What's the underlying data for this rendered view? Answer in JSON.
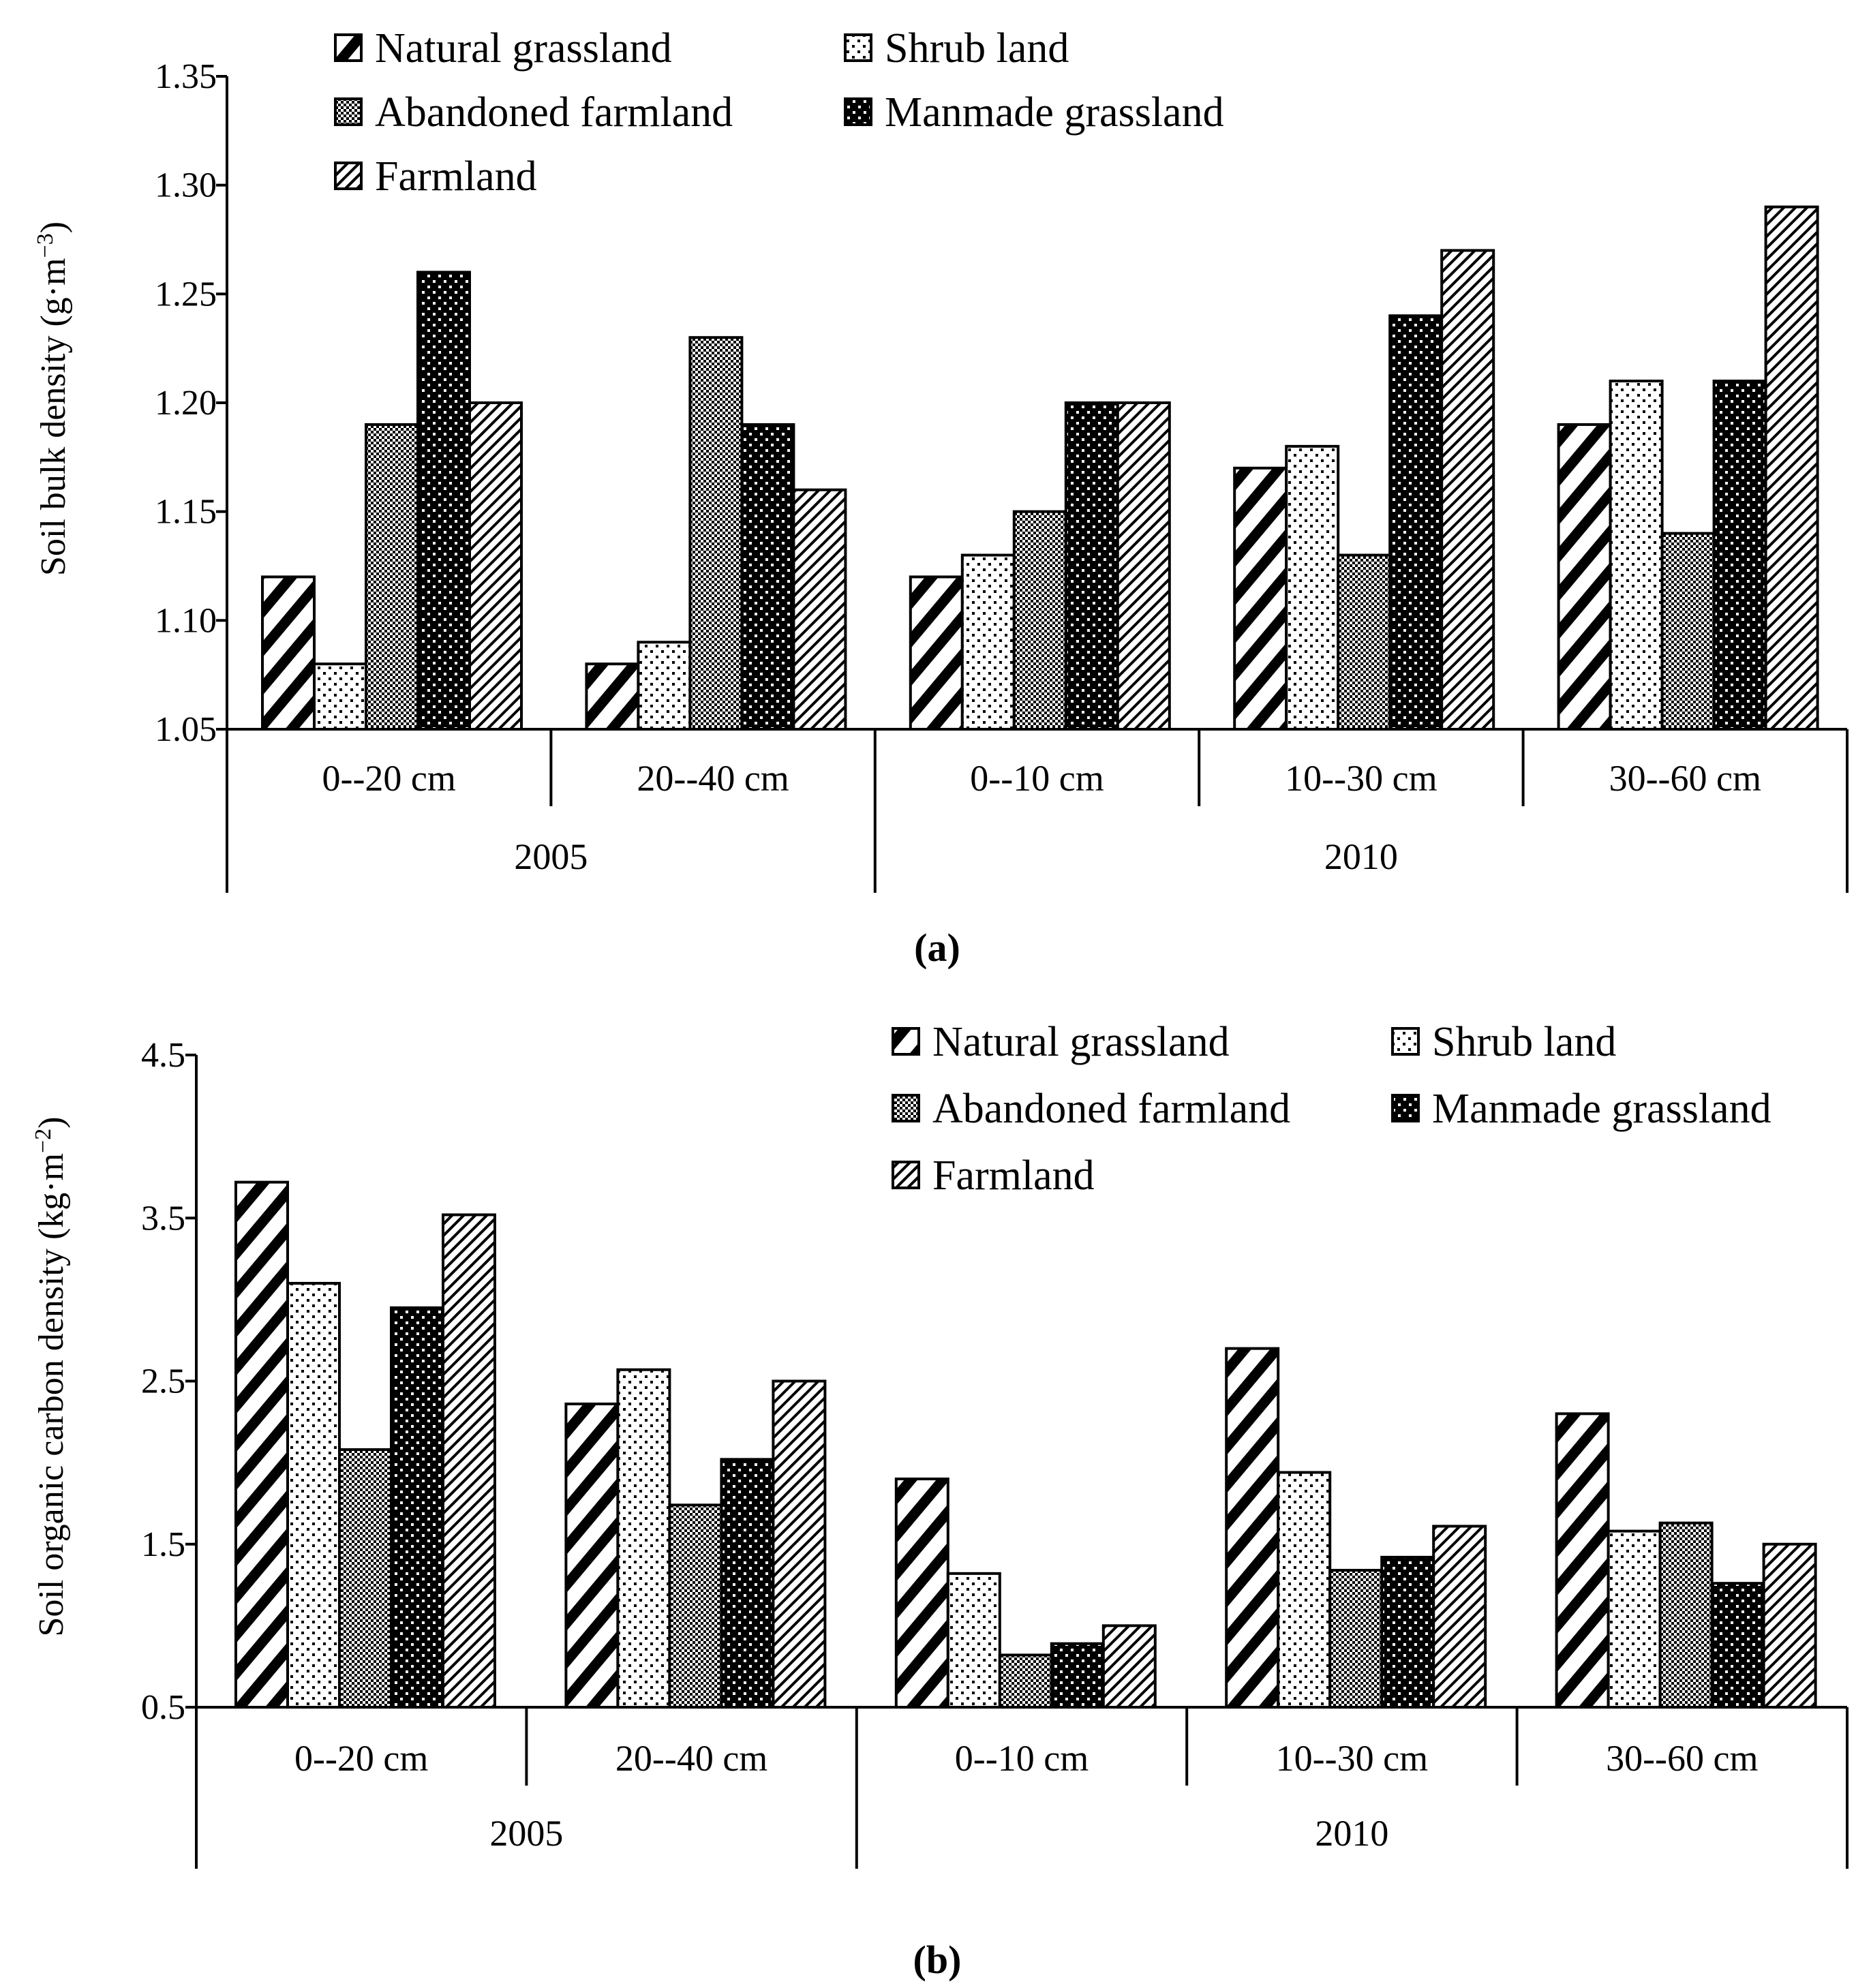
{
  "chart_data": [
    {
      "panel": "a",
      "type": "bar",
      "ylabel": "Soil bulk density",
      "ylabel_unit_base": "g·m",
      "ylabel_unit_exp": "−3",
      "ylim": [
        1.05,
        1.35
      ],
      "yticks": [
        "1.05",
        "1.10",
        "1.15",
        "1.20",
        "1.25",
        "1.30",
        "1.35"
      ],
      "groups": [
        {
          "label": "2005",
          "categories": [
            "0--20 cm",
            "20--40 cm"
          ]
        },
        {
          "label": "2010",
          "categories": [
            "0--10 cm",
            "10--30 cm",
            "30--60 cm"
          ]
        }
      ],
      "categories": [
        "0--20 cm",
        "20--40 cm",
        "0--10 cm",
        "10--30 cm",
        "30--60 cm"
      ],
      "series": [
        {
          "name": "Natural grassland",
          "values": [
            1.12,
            1.08,
            1.12,
            1.17,
            1.19
          ]
        },
        {
          "name": "Shrub  land",
          "values": [
            1.08,
            1.09,
            1.13,
            1.18,
            1.21
          ]
        },
        {
          "name": "Abandoned farmland",
          "values": [
            1.19,
            1.23,
            1.15,
            1.13,
            1.14
          ]
        },
        {
          "name": "Manmade grassland",
          "values": [
            1.26,
            1.19,
            1.2,
            1.24,
            1.21
          ]
        },
        {
          "name": "Farmland",
          "values": [
            1.2,
            1.16,
            1.2,
            1.27,
            1.29
          ]
        }
      ]
    },
    {
      "panel": "b",
      "type": "bar",
      "ylabel": "Soil organic carbon density",
      "ylabel_unit_base": "kg·m",
      "ylabel_unit_exp": "−2",
      "ylim": [
        0.5,
        4.5
      ],
      "yticks": [
        "0.5",
        "1.5",
        "2.5",
        "3.5",
        "4.5"
      ],
      "groups": [
        {
          "label": "2005",
          "categories": [
            "0--20 cm",
            "20--40 cm"
          ]
        },
        {
          "label": "2010",
          "categories": [
            "0--10 cm",
            "10--30 cm",
            "30--60 cm"
          ]
        }
      ],
      "categories": [
        "0--20 cm",
        "20--40 cm",
        "0--10 cm",
        "10--30 cm",
        "30--60 cm"
      ],
      "series": [
        {
          "name": "Natural grassland",
          "values": [
            3.72,
            2.36,
            1.9,
            2.7,
            2.3
          ]
        },
        {
          "name": "Shrub  land",
          "values": [
            3.1,
            2.57,
            1.32,
            1.94,
            1.58
          ]
        },
        {
          "name": "Abandoned farmland",
          "values": [
            2.08,
            1.74,
            0.82,
            1.34,
            1.63
          ]
        },
        {
          "name": "Manmade grassland",
          "values": [
            2.95,
            2.02,
            0.89,
            1.42,
            1.26
          ]
        },
        {
          "name": "Farmland",
          "values": [
            3.52,
            2.5,
            1.0,
            1.61,
            1.5
          ]
        }
      ]
    }
  ],
  "panel_labels": [
    "(a)",
    "(b)"
  ],
  "colors": {
    "stroke": "#000000",
    "background": "#ffffff",
    "fill_black": "#000000",
    "fill_white": "#ffffff"
  },
  "series_patterns": [
    "pat-natural",
    "pat-shrub",
    "pat-abandoned",
    "pat-manmade",
    "pat-farmland"
  ]
}
